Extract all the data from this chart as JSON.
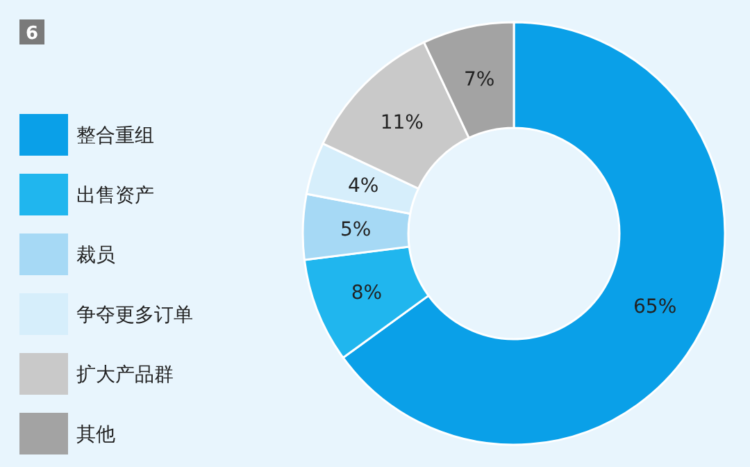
{
  "chart_data": {
    "type": "donut",
    "annotations": [
      "6"
    ],
    "categories": [
      "整合重组",
      "出售资产",
      "裁员",
      "争夺更多订单",
      "扩大产品群",
      "其他"
    ],
    "values": [
      65,
      8,
      5,
      4,
      11,
      7
    ],
    "colors": [
      "#0aa0e8",
      "#20b6ee",
      "#a6d9f5",
      "#d6eefb",
      "#c9c9c9",
      "#a3a3a3"
    ],
    "value_labels": [
      "65%",
      "8%",
      "5%",
      "4%",
      "11%",
      "7%"
    ],
    "legend": "left"
  }
}
